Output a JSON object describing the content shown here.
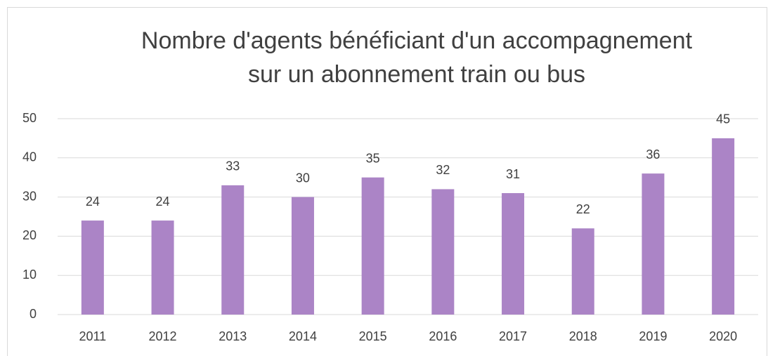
{
  "chart_data": {
    "type": "bar",
    "title": [
      "Nombre d'agents bénéficiant d'un accompagnement",
      "sur un abonnement train ou bus"
    ],
    "categories": [
      "2011",
      "2012",
      "2013",
      "2014",
      "2015",
      "2016",
      "2017",
      "2018",
      "2019",
      "2020"
    ],
    "values": [
      24,
      24,
      33,
      30,
      35,
      32,
      31,
      22,
      36,
      45
    ],
    "color": "#ab84c6",
    "ylim": [
      0,
      50
    ],
    "yticks": [
      0,
      10,
      20,
      30,
      40,
      50
    ],
    "grid": true
  }
}
